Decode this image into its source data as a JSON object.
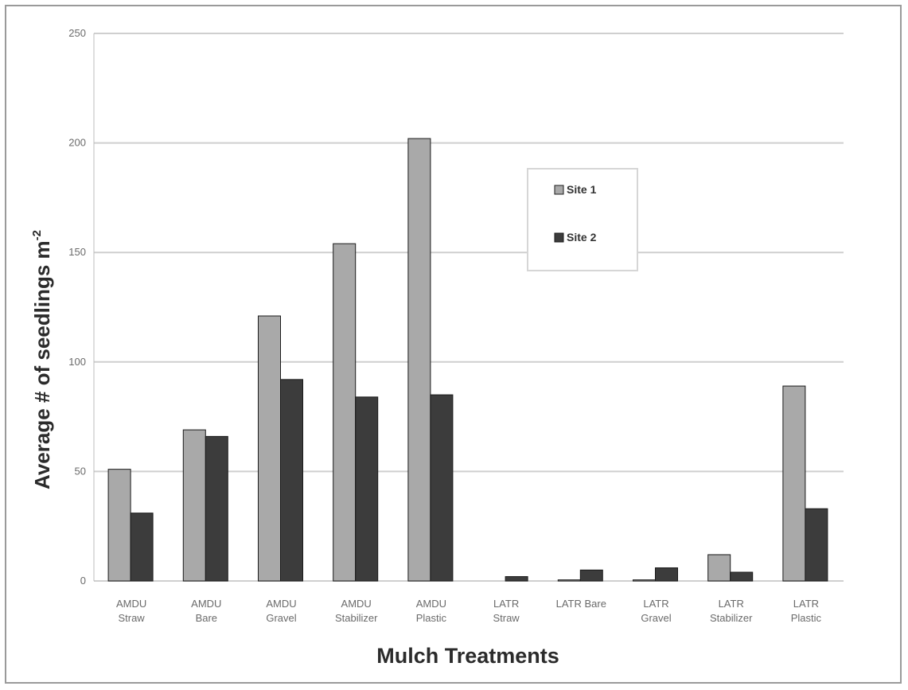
{
  "chart_data": {
    "type": "bar",
    "title": "",
    "xlabel": "Mulch Treatments",
    "ylabel": "Average # of seedlings m",
    "ylabel_superscript": "-2",
    "ylim": [
      0,
      250
    ],
    "yticks": [
      0,
      50,
      100,
      150,
      200,
      250
    ],
    "grid": true,
    "legend_position": "top-right",
    "categories": [
      [
        "AMDU",
        "Straw"
      ],
      [
        "AMDU",
        "Bare"
      ],
      [
        "AMDU",
        "Gravel"
      ],
      [
        "AMDU",
        "Stabilizer"
      ],
      [
        "AMDU",
        "Plastic"
      ],
      [
        "LATR",
        "Straw"
      ],
      [
        "LATR Bare"
      ],
      [
        "LATR",
        "Gravel"
      ],
      [
        "LATR",
        "Stabilizer"
      ],
      [
        "LATR",
        "Plastic"
      ]
    ],
    "series": [
      {
        "name": "Site 1",
        "color": "#a9a9a9",
        "values": [
          51,
          69,
          121,
          154,
          202,
          0,
          0.5,
          0.5,
          12,
          89
        ]
      },
      {
        "name": "Site 2",
        "color": "#3c3c3c",
        "values": [
          31,
          66,
          92,
          84,
          85,
          2,
          5,
          6,
          4,
          33
        ]
      }
    ]
  }
}
